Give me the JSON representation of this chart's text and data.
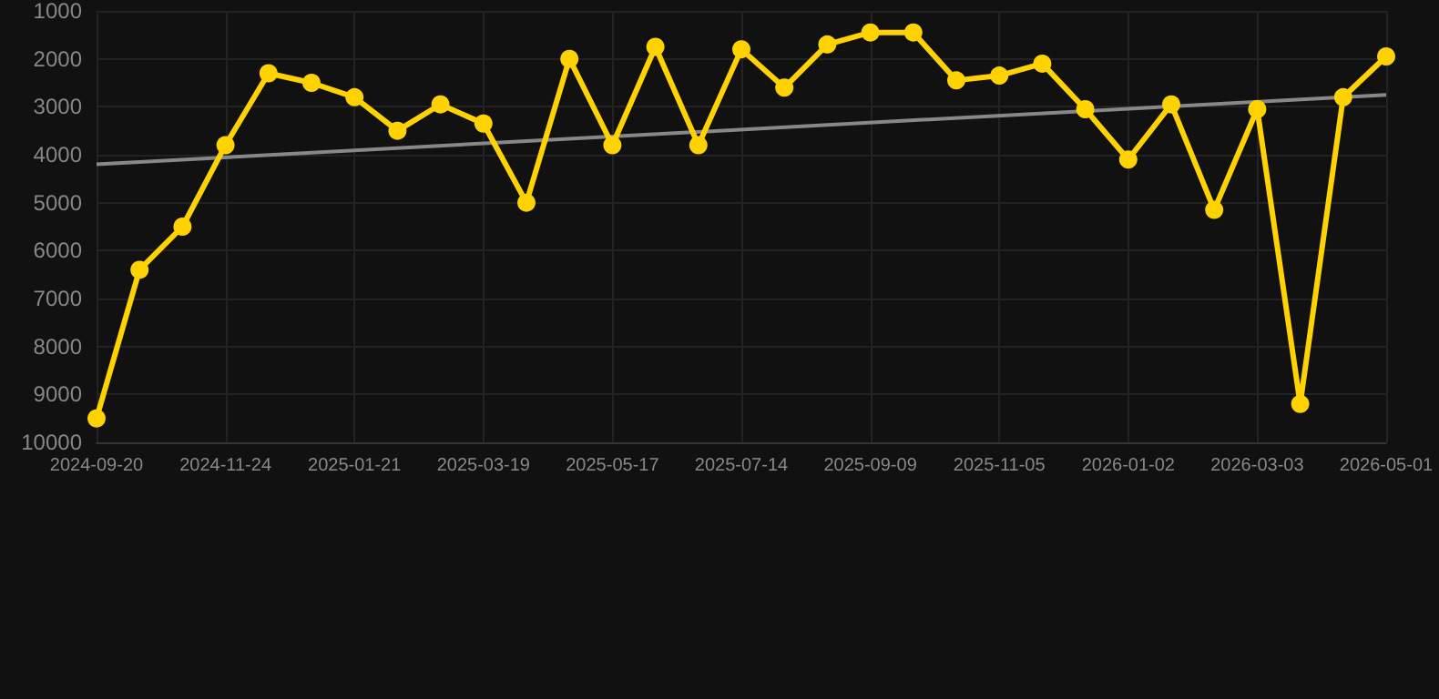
{
  "chart_data": {
    "type": "line",
    "categories": [
      "2024-09-20",
      null,
      null,
      "2024-11-24",
      null,
      null,
      "2025-01-21",
      null,
      null,
      "2025-03-19",
      null,
      null,
      "2025-05-17",
      null,
      null,
      "2025-07-14",
      null,
      null,
      "2025-09-09",
      null,
      null,
      "2025-11-05",
      null,
      null,
      "2026-01-02",
      null,
      null,
      "2026-03-03",
      null,
      null,
      "2026-05-01"
    ],
    "series": [
      {
        "color": "#ffd200",
        "marker": "circle",
        "values": [
          9500,
          6400,
          5500,
          3800,
          2300,
          2500,
          2800,
          3500,
          2950,
          3350,
          5000,
          2000,
          3800,
          1750,
          3800,
          1800,
          2600,
          1700,
          1450,
          1450,
          2450,
          2350,
          2100,
          3050,
          4100,
          2950,
          5150,
          3050,
          9200,
          2800,
          1950
        ]
      },
      {
        "type": "line",
        "color": "#888888",
        "marker": "none",
        "values": [
          4200,
          null,
          null,
          null,
          null,
          null,
          null,
          null,
          null,
          null,
          null,
          null,
          null,
          null,
          null,
          null,
          null,
          null,
          null,
          null,
          null,
          null,
          null,
          null,
          null,
          null,
          null,
          null,
          null,
          null,
          2750
        ]
      }
    ],
    "ylim": [
      10000,
      1000
    ],
    "yticks": [
      1000,
      2000,
      3000,
      4000,
      5000,
      6000,
      7000,
      8000,
      9000,
      10000
    ],
    "grid": true
  }
}
